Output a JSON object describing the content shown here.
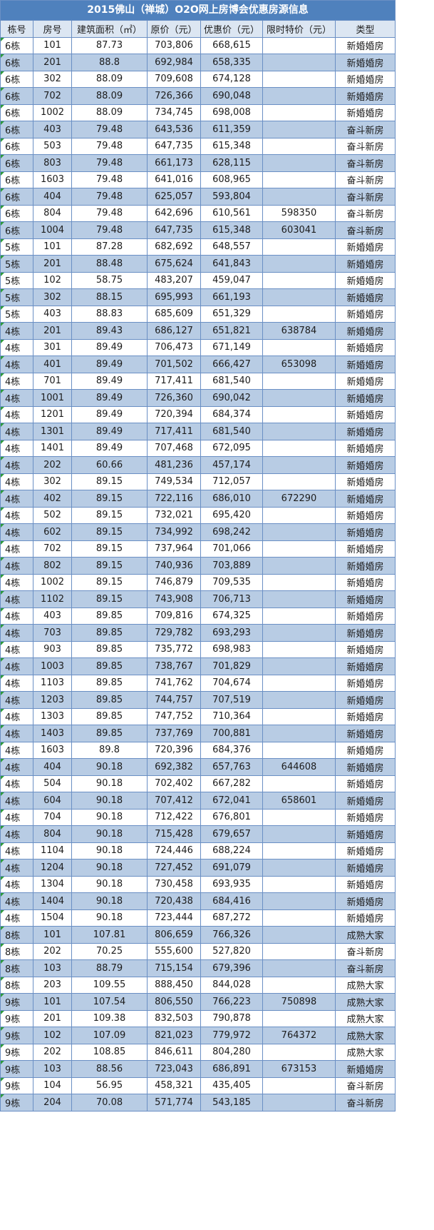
{
  "title": "2015佛山（禅城）O2O网上房博会优惠房源信息",
  "headers": [
    "栋号",
    "房号",
    "建筑面积（㎡）",
    "原价（元）",
    "优惠价（元）",
    "限时特价（元）",
    "类型"
  ],
  "rows": [
    [
      "6栋",
      "101",
      "87.73",
      "703,806",
      "668,615",
      "",
      "新婚婚房"
    ],
    [
      "6栋",
      "201",
      "88.8",
      "692,984",
      "658,335",
      "",
      "新婚婚房"
    ],
    [
      "6栋",
      "302",
      "88.09",
      "709,608",
      "674,128",
      "",
      "新婚婚房"
    ],
    [
      "6栋",
      "702",
      "88.09",
      "726,366",
      "690,048",
      "",
      "新婚婚房"
    ],
    [
      "6栋",
      "1002",
      "88.09",
      "734,745",
      "698,008",
      "",
      "新婚婚房"
    ],
    [
      "6栋",
      "403",
      "79.48",
      "643,536",
      "611,359",
      "",
      "奋斗新房"
    ],
    [
      "6栋",
      "503",
      "79.48",
      "647,735",
      "615,348",
      "",
      "奋斗新房"
    ],
    [
      "6栋",
      "803",
      "79.48",
      "661,173",
      "628,115",
      "",
      "奋斗新房"
    ],
    [
      "6栋",
      "1603",
      "79.48",
      "641,016",
      "608,965",
      "",
      "奋斗新房"
    ],
    [
      "6栋",
      "404",
      "79.48",
      "625,057",
      "593,804",
      "",
      "奋斗新房"
    ],
    [
      "6栋",
      "804",
      "79.48",
      "642,696",
      "610,561",
      "598350",
      "奋斗新房"
    ],
    [
      "6栋",
      "1004",
      "79.48",
      "647,735",
      "615,348",
      "603041",
      "奋斗新房"
    ],
    [
      "5栋",
      "101",
      "87.28",
      "682,692",
      "648,557",
      "",
      "新婚婚房"
    ],
    [
      "5栋",
      "201",
      "88.48",
      "675,624",
      "641,843",
      "",
      "新婚婚房"
    ],
    [
      "5栋",
      "102",
      "58.75",
      "483,207",
      "459,047",
      "",
      "新婚婚房"
    ],
    [
      "5栋",
      "302",
      "88.15",
      "695,993",
      "661,193",
      "",
      "新婚婚房"
    ],
    [
      "5栋",
      "403",
      "88.83",
      "685,609",
      "651,329",
      "",
      "新婚婚房"
    ],
    [
      "4栋",
      "201",
      "89.43",
      "686,127",
      "651,821",
      "638784",
      "新婚婚房"
    ],
    [
      "4栋",
      "301",
      "89.49",
      "706,473",
      "671,149",
      "",
      "新婚婚房"
    ],
    [
      "4栋",
      "401",
      "89.49",
      "701,502",
      "666,427",
      "653098",
      "新婚婚房"
    ],
    [
      "4栋",
      "701",
      "89.49",
      "717,411",
      "681,540",
      "",
      "新婚婚房"
    ],
    [
      "4栋",
      "1001",
      "89.49",
      "726,360",
      "690,042",
      "",
      "新婚婚房"
    ],
    [
      "4栋",
      "1201",
      "89.49",
      "720,394",
      "684,374",
      "",
      "新婚婚房"
    ],
    [
      "4栋",
      "1301",
      "89.49",
      "717,411",
      "681,540",
      "",
      "新婚婚房"
    ],
    [
      "4栋",
      "1401",
      "89.49",
      "707,468",
      "672,095",
      "",
      "新婚婚房"
    ],
    [
      "4栋",
      "202",
      "60.66",
      "481,236",
      "457,174",
      "",
      "新婚婚房"
    ],
    [
      "4栋",
      "302",
      "89.15",
      "749,534",
      "712,057",
      "",
      "新婚婚房"
    ],
    [
      "4栋",
      "402",
      "89.15",
      "722,116",
      "686,010",
      "672290",
      "新婚婚房"
    ],
    [
      "4栋",
      "502",
      "89.15",
      "732,021",
      "695,420",
      "",
      "新婚婚房"
    ],
    [
      "4栋",
      "602",
      "89.15",
      "734,992",
      "698,242",
      "",
      "新婚婚房"
    ],
    [
      "4栋",
      "702",
      "89.15",
      "737,964",
      "701,066",
      "",
      "新婚婚房"
    ],
    [
      "4栋",
      "802",
      "89.15",
      "740,936",
      "703,889",
      "",
      "新婚婚房"
    ],
    [
      "4栋",
      "1002",
      "89.15",
      "746,879",
      "709,535",
      "",
      "新婚婚房"
    ],
    [
      "4栋",
      "1102",
      "89.15",
      "743,908",
      "706,713",
      "",
      "新婚婚房"
    ],
    [
      "4栋",
      "403",
      "89.85",
      "709,816",
      "674,325",
      "",
      "新婚婚房"
    ],
    [
      "4栋",
      "703",
      "89.85",
      "729,782",
      "693,293",
      "",
      "新婚婚房"
    ],
    [
      "4栋",
      "903",
      "89.85",
      "735,772",
      "698,983",
      "",
      "新婚婚房"
    ],
    [
      "4栋",
      "1003",
      "89.85",
      "738,767",
      "701,829",
      "",
      "新婚婚房"
    ],
    [
      "4栋",
      "1103",
      "89.85",
      "741,762",
      "704,674",
      "",
      "新婚婚房"
    ],
    [
      "4栋",
      "1203",
      "89.85",
      "744,757",
      "707,519",
      "",
      "新婚婚房"
    ],
    [
      "4栋",
      "1303",
      "89.85",
      "747,752",
      "710,364",
      "",
      "新婚婚房"
    ],
    [
      "4栋",
      "1403",
      "89.85",
      "737,769",
      "700,881",
      "",
      "新婚婚房"
    ],
    [
      "4栋",
      "1603",
      "89.8",
      "720,396",
      "684,376",
      "",
      "新婚婚房"
    ],
    [
      "4栋",
      "404",
      "90.18",
      "692,382",
      "657,763",
      "644608",
      "新婚婚房"
    ],
    [
      "4栋",
      "504",
      "90.18",
      "702,402",
      "667,282",
      "",
      "新婚婚房"
    ],
    [
      "4栋",
      "604",
      "90.18",
      "707,412",
      "672,041",
      "658601",
      "新婚婚房"
    ],
    [
      "4栋",
      "704",
      "90.18",
      "712,422",
      "676,801",
      "",
      "新婚婚房"
    ],
    [
      "4栋",
      "804",
      "90.18",
      "715,428",
      "679,657",
      "",
      "新婚婚房"
    ],
    [
      "4栋",
      "1104",
      "90.18",
      "724,446",
      "688,224",
      "",
      "新婚婚房"
    ],
    [
      "4栋",
      "1204",
      "90.18",
      "727,452",
      "691,079",
      "",
      "新婚婚房"
    ],
    [
      "4栋",
      "1304",
      "90.18",
      "730,458",
      "693,935",
      "",
      "新婚婚房"
    ],
    [
      "4栋",
      "1404",
      "90.18",
      "720,438",
      "684,416",
      "",
      "新婚婚房"
    ],
    [
      "4栋",
      "1504",
      "90.18",
      "723,444",
      "687,272",
      "",
      "新婚婚房"
    ],
    [
      "8栋",
      "101",
      "107.81",
      "806,659",
      "766,326",
      "",
      "成熟大家"
    ],
    [
      "8栋",
      "202",
      "70.25",
      "555,600",
      "527,820",
      "",
      "奋斗新房"
    ],
    [
      "8栋",
      "103",
      "88.79",
      "715,154",
      "679,396",
      "",
      "奋斗新房"
    ],
    [
      "8栋",
      "203",
      "109.55",
      "888,450",
      "844,028",
      "",
      "成熟大家"
    ],
    [
      "9栋",
      "101",
      "107.54",
      "806,550",
      "766,223",
      "750898",
      "成熟大家"
    ],
    [
      "9栋",
      "201",
      "109.38",
      "832,503",
      "790,878",
      "",
      "成熟大家"
    ],
    [
      "9栋",
      "102",
      "107.09",
      "821,023",
      "779,972",
      "764372",
      "成熟大家"
    ],
    [
      "9栋",
      "202",
      "108.85",
      "846,611",
      "804,280",
      "",
      "成熟大家"
    ],
    [
      "9栋",
      "103",
      "88.56",
      "723,043",
      "686,891",
      "673153",
      "新婚婚房"
    ],
    [
      "9栋",
      "104",
      "56.95",
      "458,321",
      "435,405",
      "",
      "奋斗新房"
    ],
    [
      "9栋",
      "204",
      "70.08",
      "571,774",
      "543,185",
      "",
      "奋斗新房"
    ]
  ]
}
